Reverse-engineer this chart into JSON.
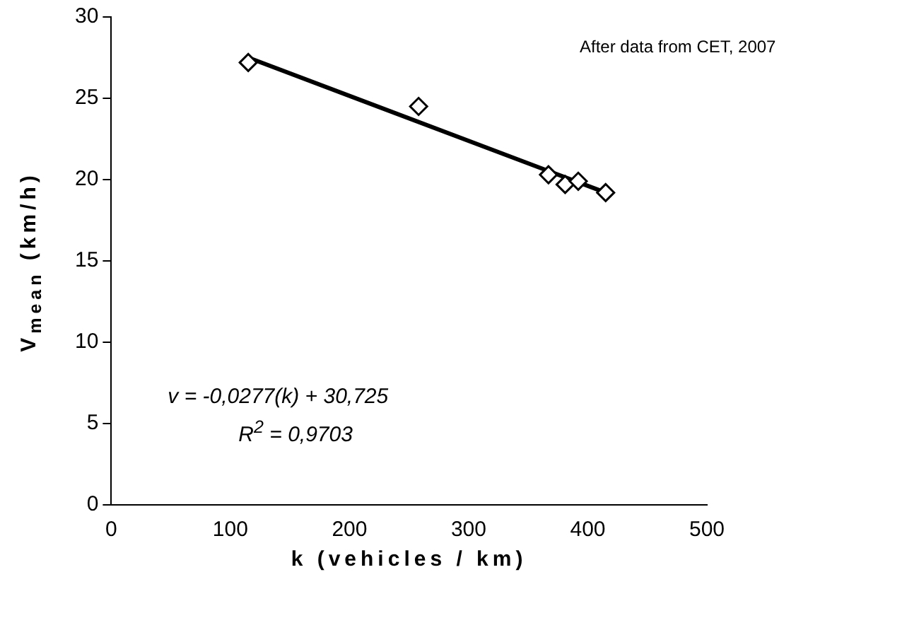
{
  "chart_data": {
    "type": "scatter",
    "xlabel": "k (vehicles / km)",
    "ylabel": "V$_{mean}$ (km/h)",
    "xlim": [
      0,
      500
    ],
    "xticks": [
      0,
      100,
      200,
      300,
      400,
      500
    ],
    "ylim": [
      0,
      30
    ],
    "yticks": [
      0,
      5,
      10,
      15,
      20,
      25,
      30
    ],
    "grid": false,
    "legend": false,
    "marker": "diamond",
    "series": [
      {
        "color": "#000000",
        "x": [
          115,
          258,
          367,
          381,
          392,
          415
        ],
        "values": [
          27.2,
          24.5,
          20.3,
          19.7,
          19.9,
          19.2
        ]
      },
      {
        "type": "line",
        "color": "#000000",
        "marker": "none",
        "x": [
          115,
          415
        ],
        "values": [
          27.5,
          19.2
        ]
      }
    ],
    "annotations": [
      "After data from CET, 2007",
      "v = -0,0277(k) + 30,725",
      "R$^{2}$ = 0,9703"
    ]
  }
}
